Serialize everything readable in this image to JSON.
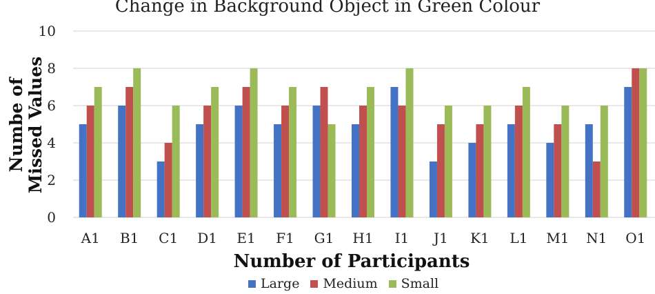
{
  "chart_data": {
    "type": "bar",
    "title": "Change in Background Object in Green Colour",
    "xlabel": "Number of Participants",
    "ylabel": "Numbe of Missed Values",
    "ylim": [
      0,
      10
    ],
    "yticks": [
      0,
      2,
      4,
      6,
      8,
      10
    ],
    "grid": true,
    "legend_position": "bottom",
    "categories": [
      "A1",
      "B1",
      "C1",
      "D1",
      "E1",
      "F1",
      "G1",
      "H1",
      "I1",
      "J1",
      "K1",
      "L1",
      "M1",
      "N1",
      "O1"
    ],
    "series": [
      {
        "name": "Large",
        "color": "#4472C4",
        "values": [
          5,
          6,
          3,
          5,
          6,
          5,
          6,
          5,
          7,
          3,
          4,
          5,
          4,
          5,
          7
        ]
      },
      {
        "name": "Medium",
        "color": "#C0504D",
        "values": [
          6,
          7,
          4,
          6,
          7,
          6,
          7,
          6,
          6,
          5,
          5,
          6,
          5,
          3,
          8
        ]
      },
      {
        "name": "Small",
        "color": "#9BBB59",
        "values": [
          7,
          8,
          6,
          7,
          8,
          7,
          5,
          7,
          8,
          6,
          6,
          7,
          6,
          6,
          8
        ]
      }
    ]
  }
}
